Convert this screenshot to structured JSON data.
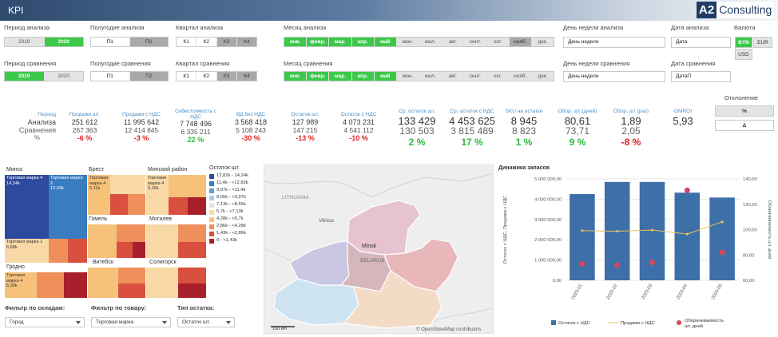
{
  "app": {
    "title": "KPI",
    "logo_mark": "A2",
    "logo_text": "Consulting"
  },
  "filters": {
    "period_analysis": {
      "label": "Период анализа",
      "options": [
        "2019",
        "2020"
      ],
      "selected": [
        1
      ]
    },
    "halfyear_analysis": {
      "label": "Полугодие анализа",
      "options": [
        "П1",
        "П2"
      ]
    },
    "quarter_analysis": {
      "label": "Квартал анализа",
      "options": [
        "К1",
        "К2",
        "К3",
        "К4"
      ]
    },
    "month_analysis": {
      "label": "Месяц анализа",
      "options": [
        "янв.",
        "февр.",
        "мар.",
        "апр.",
        "май",
        "июн.",
        "июл.",
        "авг.",
        "сент.",
        "окт.",
        "нояб.",
        "дек."
      ]
    },
    "weekday_analysis": {
      "label": "День недели анализа",
      "value": "День недели"
    },
    "date_analysis": {
      "label": "Дата анализа",
      "value": "Дата"
    },
    "currency": {
      "label": "Валюта",
      "options": [
        "BYN",
        "EUR",
        "USD"
      ],
      "selected": "BYN"
    },
    "period_compare": {
      "label": "Период сравнения",
      "options": [
        "2019",
        "2020"
      ]
    },
    "halfyear_compare": {
      "label": "Полугодие сравнения",
      "options": [
        "П1",
        "П2"
      ]
    },
    "quarter_compare": {
      "label": "Квартал сравнения",
      "options": [
        "К1",
        "К2",
        "К3",
        "К4"
      ]
    },
    "month_compare": {
      "label": "Месяц сравнения",
      "options": [
        "янв.",
        "февр.",
        "мар.",
        "апр.",
        "май",
        "июн.",
        "июл.",
        "авг.",
        "сент.",
        "окт.",
        "нояб.",
        "дек."
      ]
    },
    "weekday_compare": {
      "label": "День недели сравнения",
      "value": "День недели"
    },
    "date_compare": {
      "label": "Дата сравнения",
      "value": "ДатаП"
    }
  },
  "deviation": {
    "label": "Отклонение",
    "buttons": [
      "%",
      "Δ"
    ]
  },
  "kpi": {
    "row_labels": {
      "period": "Период",
      "analysis": "Анализа",
      "compare": "Сравнения",
      "pct": "%"
    },
    "small": [
      {
        "title": "Продажи шт.",
        "a": "251 612",
        "c": "267 363",
        "p": "-6 %",
        "sign": "neg"
      },
      {
        "title": "Продажи с НДС",
        "a": "11 995 642",
        "c": "12 414 845",
        "p": "-3 %",
        "sign": "neg"
      },
      {
        "title": "Себестоимость с НДС",
        "a": "7 748 496",
        "c": "6 335 211",
        "p": "22 %",
        "sign": "pos"
      },
      {
        "title": "ВД без НДС",
        "a": "3 568 418",
        "c": "5 108 243",
        "p": "-30 %",
        "sign": "neg"
      },
      {
        "title": "Остаток шт.",
        "a": "127 989",
        "c": "147 215",
        "p": "-13 %",
        "sign": "neg"
      },
      {
        "title": "Остаток с НДС",
        "a": "4 073 231",
        "c": "4 541 112",
        "p": "-10 %",
        "sign": "neg"
      }
    ],
    "big": [
      {
        "title": "Ср. остаток шт.",
        "a": "133 429",
        "c": "130 503",
        "p": "2 %",
        "sign": "pos"
      },
      {
        "title": "Ср. остаток с НДС",
        "a": "4 453 625",
        "c": "3 815 489",
        "p": "17 %",
        "sign": "pos"
      },
      {
        "title": "SKU на остатке",
        "a": "8 945",
        "c": "8 823",
        "p": "1 %",
        "sign": "pos"
      },
      {
        "title": "Обор. шт (дней)",
        "a": "80,61",
        "c": "73,71",
        "p": "9 %",
        "sign": "pos"
      },
      {
        "title": "Обор. шт (раз)",
        "a": "1,89",
        "c": "2,05",
        "p": "-8 %",
        "sign": "neg"
      }
    ],
    "gmroi": {
      "title": "GMROI",
      "value": "5,93"
    }
  },
  "treemap": {
    "regions": [
      "Минск",
      "Брест",
      "Минский район",
      "Гомель",
      "Могилев",
      "Витебск",
      "Солигорск",
      "Гродно"
    ],
    "items": [
      {
        "name": "Торговая марка 4",
        "value": "14,24k"
      },
      {
        "name": "Торговая марка 2",
        "value": "12,33k"
      },
      {
        "name": "Торговая марка 1",
        "value": "6,68k"
      },
      {
        "name": "Торговая марка 4",
        "value": "5,11k"
      },
      {
        "name": "Торговая марка 4",
        "value": "5,16k"
      },
      {
        "name": "Торговая марка 4",
        "value": "5,39k"
      }
    ]
  },
  "legend": {
    "title": "Остаток шт.",
    "items": [
      {
        "label": "12,82k - 14,24k",
        "color": "#2e4a9e"
      },
      {
        "label": "11,4k - <12,82k",
        "color": "#3a7cc0"
      },
      {
        "label": "9,97k - <11,4k",
        "color": "#5fa0d2"
      },
      {
        "label": "8,55k - <9,97k",
        "color": "#a9cbe6"
      },
      {
        "label": "7,13k - <8,55k",
        "color": "#e0e8ef"
      },
      {
        "label": "5,7k - <7,13k",
        "color": "#f8d9a6"
      },
      {
        "label": "4,28k - <5,7k",
        "color": "#f6c27a"
      },
      {
        "label": "2,86k - <4,28k",
        "color": "#ee8f5c"
      },
      {
        "label": "1,43k - <2,86k",
        "color": "#d9503f"
      },
      {
        "label": "0 - <1,43k",
        "color": "#a8202b"
      }
    ]
  },
  "bottom_filters": {
    "warehouse": {
      "label": "Фильтр по складам:",
      "value": "Город"
    },
    "product": {
      "label": "Фильтр по товару:",
      "value": "Торговая марка"
    },
    "stock_type": {
      "label": "Тип остатка:",
      "value": "Остаток шт."
    }
  },
  "map": {
    "labels": {
      "lithuania": "LITHUANIA",
      "vilnius": "Vilnius",
      "minsk": "Minsk",
      "belarus": "BELARUS"
    },
    "scale": "100 km",
    "attribution": "© OpenStreetMap contributors"
  },
  "chart_data": {
    "type": "bar",
    "title": "Динамика запасов",
    "categories": [
      "2020-01",
      "2020-02",
      "2020-03",
      "2020-04",
      "2020-05"
    ],
    "series": [
      {
        "name": "Остаток с НДС",
        "kind": "bar",
        "axis": "left",
        "color": "#3d6fa8",
        "values": [
          4250000,
          4850000,
          4850000,
          4320000,
          4080000
        ]
      },
      {
        "name": "Продажи с НДС",
        "kind": "line",
        "axis": "left",
        "color": "#f0c15a",
        "values": [
          2450000,
          2420000,
          2480000,
          2280000,
          2880000
        ]
      },
      {
        "name": "Оборачиваемость шт. дней",
        "kind": "scatter",
        "axis": "right",
        "color": "#d9455f",
        "values": [
          73,
          72,
          74,
          131,
          82
        ]
      }
    ],
    "ylabel": "Остаток с НДС, Продажи с НДС",
    "y2label": "Оборачиваемость шт. дней",
    "ylim": [
      0,
      5000000
    ],
    "y2lim": [
      60,
      140
    ],
    "yticks": [
      "0,00",
      "1 000 000,00",
      "2 000 000,00",
      "3 000 000,00",
      "4 000 000,00",
      "5 000 000,00"
    ],
    "y2ticks": [
      "60,00",
      "80,00",
      "100,00",
      "120,00",
      "140,00"
    ],
    "grid": true,
    "legend": "bottom"
  }
}
